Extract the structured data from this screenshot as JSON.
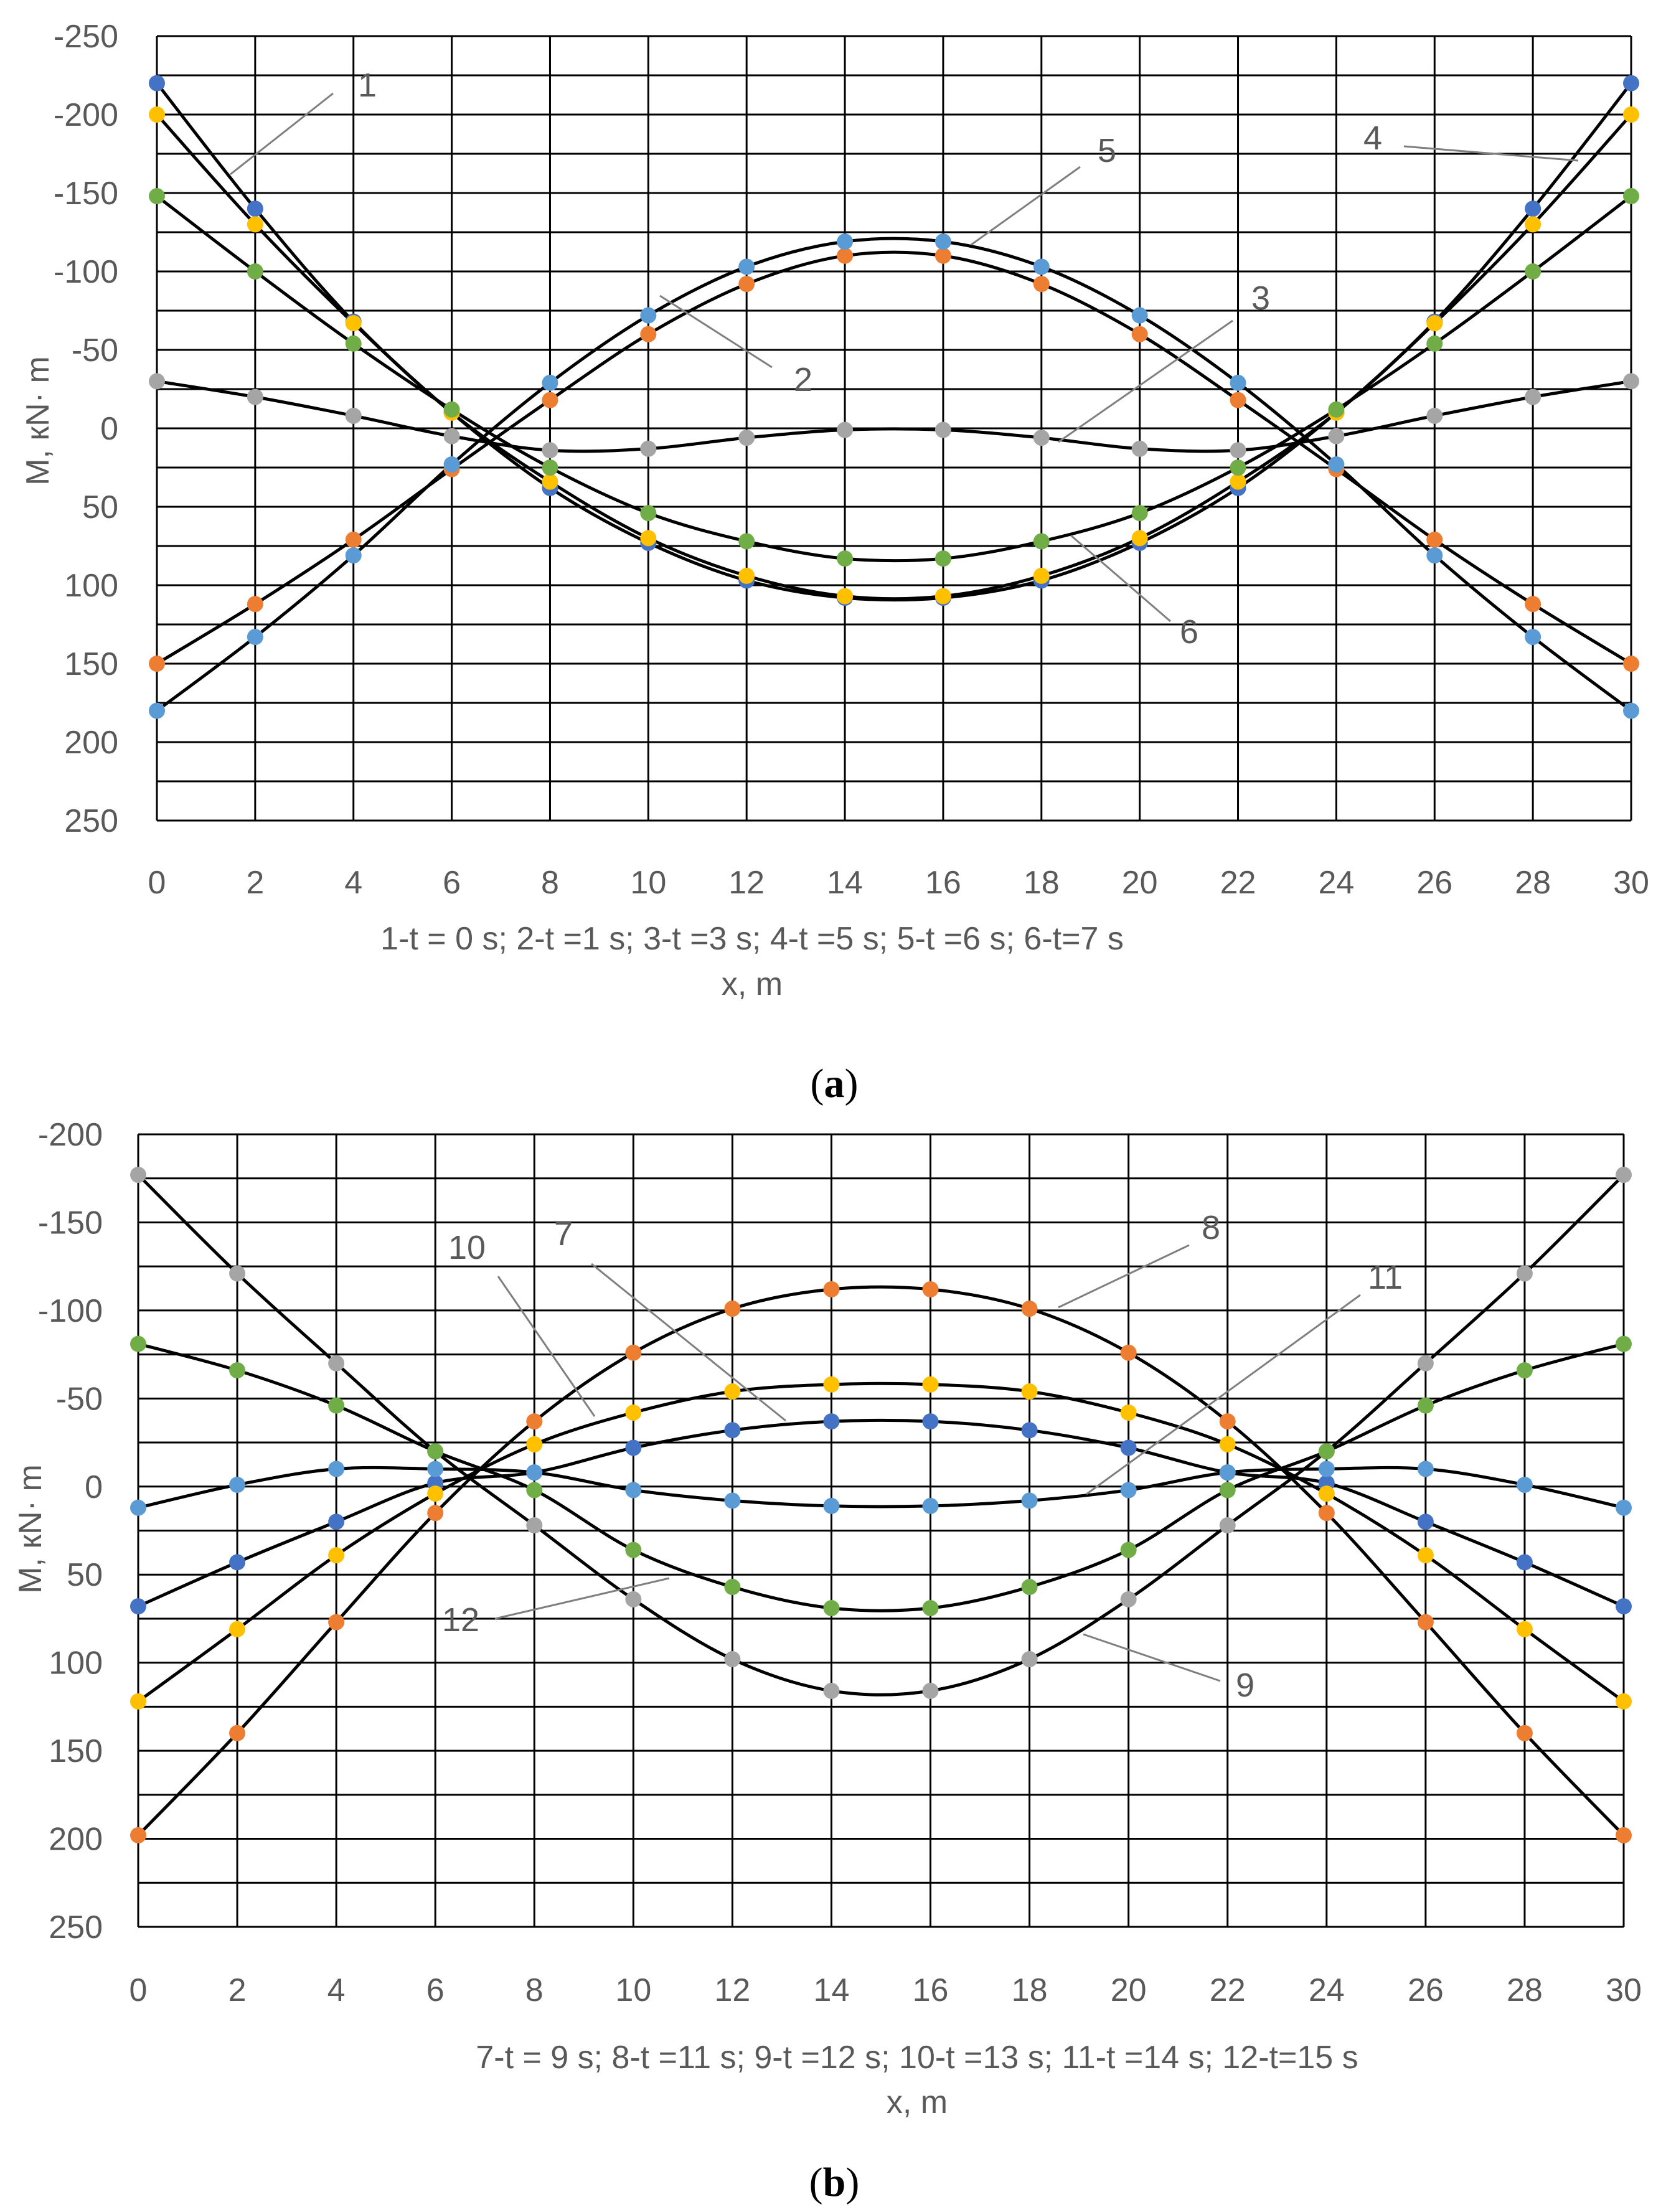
{
  "figure": {
    "panel_a_letter": "a",
    "panel_b_letter": "b"
  },
  "colors": {
    "blue": "#4472C4",
    "orange": "#ED7D31",
    "gray": "#A5A5A5",
    "yellow": "#FFC000",
    "lightblue": "#5B9BD5",
    "green": "#70AD47",
    "curve": "#000000",
    "grid": "#000000",
    "text": "#595959"
  },
  "chart_data": [
    {
      "type": "scatter",
      "panel": "a",
      "xlabel": "x, m",
      "ylabel": "M, кN· m",
      "legend_text": "1-t = 0 s;  2-t =1 s;  3-t =3 s;  4-t =5 s;  5-t =6 s; 6-t=7 s",
      "x_ticks": [
        "0",
        "2",
        "4",
        "6",
        "8",
        "10",
        "12",
        "14",
        "16",
        "18",
        "20",
        "22",
        "24",
        "26",
        "28",
        "30"
      ],
      "y_ticks": [
        "-250",
        "-200",
        "-150",
        "-100",
        "-50",
        "0",
        "50",
        "100",
        "150",
        "200",
        "250"
      ],
      "xlim": [
        0,
        30
      ],
      "ylim": [
        -250,
        250
      ],
      "y_inverted": true,
      "x": [
        0,
        2,
        4,
        6,
        8,
        10,
        12,
        14,
        16,
        18,
        20,
        22,
        24,
        26,
        28,
        30
      ],
      "series": [
        {
          "name": "1",
          "color": "blue",
          "values": [
            -220,
            -140,
            -68,
            -10,
            38,
            73,
            97,
            108,
            108,
            97,
            73,
            38,
            -10,
            -68,
            -140,
            -220
          ]
        },
        {
          "name": "2",
          "color": "orange",
          "values": [
            150,
            112,
            71,
            26,
            -18,
            -60,
            -92,
            -110,
            -110,
            -92,
            -60,
            -18,
            26,
            71,
            112,
            150
          ]
        },
        {
          "name": "3",
          "color": "gray",
          "values": [
            -30,
            -20,
            -8,
            5,
            14,
            13,
            6,
            1,
            1,
            6,
            13,
            14,
            5,
            -8,
            -20,
            -30
          ]
        },
        {
          "name": "4",
          "color": "yellow",
          "values": [
            -200,
            -130,
            -67,
            -10,
            34,
            70,
            94,
            107,
            107,
            94,
            70,
            34,
            -10,
            -67,
            -130,
            -200
          ]
        },
        {
          "name": "5",
          "color": "lightblue",
          "values": [
            180,
            133,
            81,
            23,
            -29,
            -72,
            -103,
            -119,
            -119,
            -103,
            -72,
            -29,
            23,
            81,
            133,
            180
          ]
        },
        {
          "name": "6",
          "color": "green",
          "values": [
            -148,
            -100,
            -54,
            -12,
            25,
            54,
            72,
            83,
            83,
            72,
            54,
            25,
            -12,
            -54,
            -100,
            -148
          ]
        }
      ],
      "annotations": [
        {
          "text": "1",
          "series": "1"
        },
        {
          "text": "2",
          "series": "2"
        },
        {
          "text": "3",
          "series": "3"
        },
        {
          "text": "4",
          "series": "4"
        },
        {
          "text": "5",
          "series": "5"
        },
        {
          "text": "6",
          "series": "6"
        }
      ]
    },
    {
      "type": "scatter",
      "panel": "b",
      "xlabel": "x, m",
      "ylabel": "M, кN· m",
      "legend_text": "7-t = 9 s;  8-t =11 s;  9-t =12 s;  10-t =13 s;  11-t =14 s; 12-t=15 s",
      "x_ticks": [
        "0",
        "2",
        "4",
        "6",
        "8",
        "10",
        "12",
        "14",
        "16",
        "18",
        "20",
        "22",
        "24",
        "26",
        "28",
        "30"
      ],
      "y_ticks": [
        "-200",
        "-150",
        "-100",
        "-50",
        "0",
        "50",
        "100",
        "150",
        "200",
        "250"
      ],
      "xlim": [
        0,
        30
      ],
      "ylim": [
        -200,
        250
      ],
      "y_inverted": true,
      "x": [
        0,
        2,
        4,
        6,
        8,
        10,
        12,
        14,
        16,
        18,
        20,
        22,
        24,
        26,
        28,
        30
      ],
      "series": [
        {
          "name": "7",
          "color": "blue",
          "values": [
            68,
            43,
            20,
            -2,
            -8,
            -22,
            -32,
            -37,
            -37,
            -32,
            -22,
            -8,
            -2,
            20,
            43,
            68
          ]
        },
        {
          "name": "8",
          "color": "orange",
          "values": [
            198,
            140,
            77,
            15,
            -37,
            -76,
            -101,
            -112,
            -112,
            -101,
            -76,
            -37,
            15,
            77,
            140,
            198
          ]
        },
        {
          "name": "9",
          "color": "gray",
          "values": [
            -177,
            -121,
            -70,
            -20,
            22,
            64,
            98,
            116,
            116,
            98,
            64,
            22,
            -20,
            -70,
            -121,
            -177
          ]
        },
        {
          "name": "10",
          "color": "yellow",
          "values": [
            122,
            81,
            39,
            4,
            -24,
            -42,
            -54,
            -58,
            -58,
            -54,
            -42,
            -24,
            4,
            39,
            81,
            122
          ]
        },
        {
          "name": "11",
          "color": "lightblue",
          "values": [
            12,
            -1,
            -10,
            -10,
            -8,
            2,
            8,
            11,
            11,
            8,
            2,
            -8,
            -10,
            -10,
            -1,
            12
          ]
        },
        {
          "name": "12",
          "color": "green",
          "values": [
            -81,
            -66,
            -46,
            -20,
            2,
            36,
            57,
            69,
            69,
            57,
            36,
            2,
            -20,
            -46,
            -66,
            -81
          ]
        }
      ],
      "annotations": [
        {
          "text": "7",
          "series": "7"
        },
        {
          "text": "8",
          "series": "8"
        },
        {
          "text": "9",
          "series": "9"
        },
        {
          "text": "10",
          "series": "10"
        },
        {
          "text": "11",
          "series": "11"
        },
        {
          "text": "12",
          "series": "12"
        }
      ]
    }
  ]
}
